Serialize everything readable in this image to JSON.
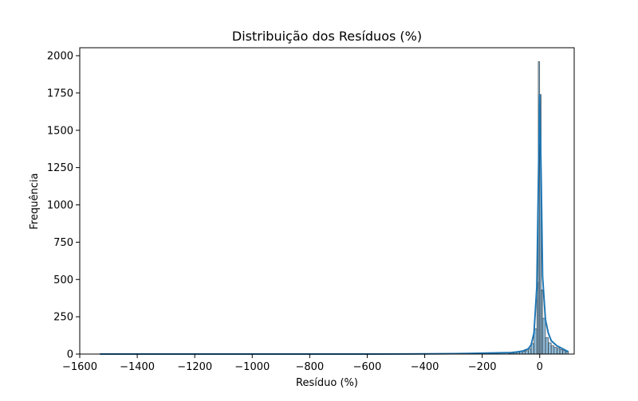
{
  "chart_data": {
    "type": "histogram",
    "title": "Distribuição dos Resíduos (%)",
    "xlabel": "Resíduo (%)",
    "ylabel": "Frequência",
    "xlim": [
      -1600,
      120
    ],
    "ylim": [
      0,
      2000
    ],
    "x_ticks": [
      -1600,
      -1400,
      -1200,
      -1000,
      -800,
      -600,
      -400,
      -200,
      0
    ],
    "y_ticks": [
      0,
      250,
      500,
      750,
      1000,
      1250,
      1500,
      1750,
      2000
    ],
    "bar_color": "#1f77b4",
    "kde_color": "#1f77b4",
    "bins": [
      {
        "x0": -110,
        "x1": -100,
        "count": 3
      },
      {
        "x0": -100,
        "x1": -90,
        "count": 6
      },
      {
        "x0": -90,
        "x1": -80,
        "count": 9
      },
      {
        "x0": -80,
        "x1": -70,
        "count": 12
      },
      {
        "x0": -70,
        "x1": -60,
        "count": 15
      },
      {
        "x0": -60,
        "x1": -50,
        "count": 18
      },
      {
        "x0": -50,
        "x1": -40,
        "count": 22
      },
      {
        "x0": -40,
        "x1": -30,
        "count": 35
      },
      {
        "x0": -30,
        "x1": -20,
        "count": 70
      },
      {
        "x0": -20,
        "x1": -10,
        "count": 170
      },
      {
        "x0": -10,
        "x1": -5,
        "count": 480
      },
      {
        "x0": -5,
        "x1": 0,
        "count": 1960
      },
      {
        "x0": 0,
        "x1": 5,
        "count": 1740
      },
      {
        "x0": 5,
        "x1": 10,
        "count": 430
      },
      {
        "x0": 10,
        "x1": 20,
        "count": 240
      },
      {
        "x0": 20,
        "x1": 30,
        "count": 110
      },
      {
        "x0": 30,
        "x1": 40,
        "count": 75
      },
      {
        "x0": 40,
        "x1": 50,
        "count": 55
      },
      {
        "x0": 50,
        "x1": 60,
        "count": 45
      },
      {
        "x0": 60,
        "x1": 70,
        "count": 38
      },
      {
        "x0": 70,
        "x1": 80,
        "count": 30
      },
      {
        "x0": 80,
        "x1": 90,
        "count": 22
      },
      {
        "x0": 90,
        "x1": 100,
        "count": 15
      }
    ],
    "kde": {
      "x": [
        -1530,
        -1200,
        -900,
        -600,
        -400,
        -300,
        -250,
        -200,
        -150,
        -100,
        -80,
        -60,
        -40,
        -30,
        -20,
        -10,
        -5,
        0,
        5,
        10,
        20,
        30,
        40,
        60,
        80,
        100
      ],
      "y": [
        0,
        0,
        0,
        0,
        1,
        3,
        4,
        6,
        8,
        10,
        14,
        20,
        35,
        60,
        140,
        450,
        1100,
        1740,
        1200,
        520,
        230,
        140,
        90,
        55,
        35,
        15
      ]
    }
  }
}
